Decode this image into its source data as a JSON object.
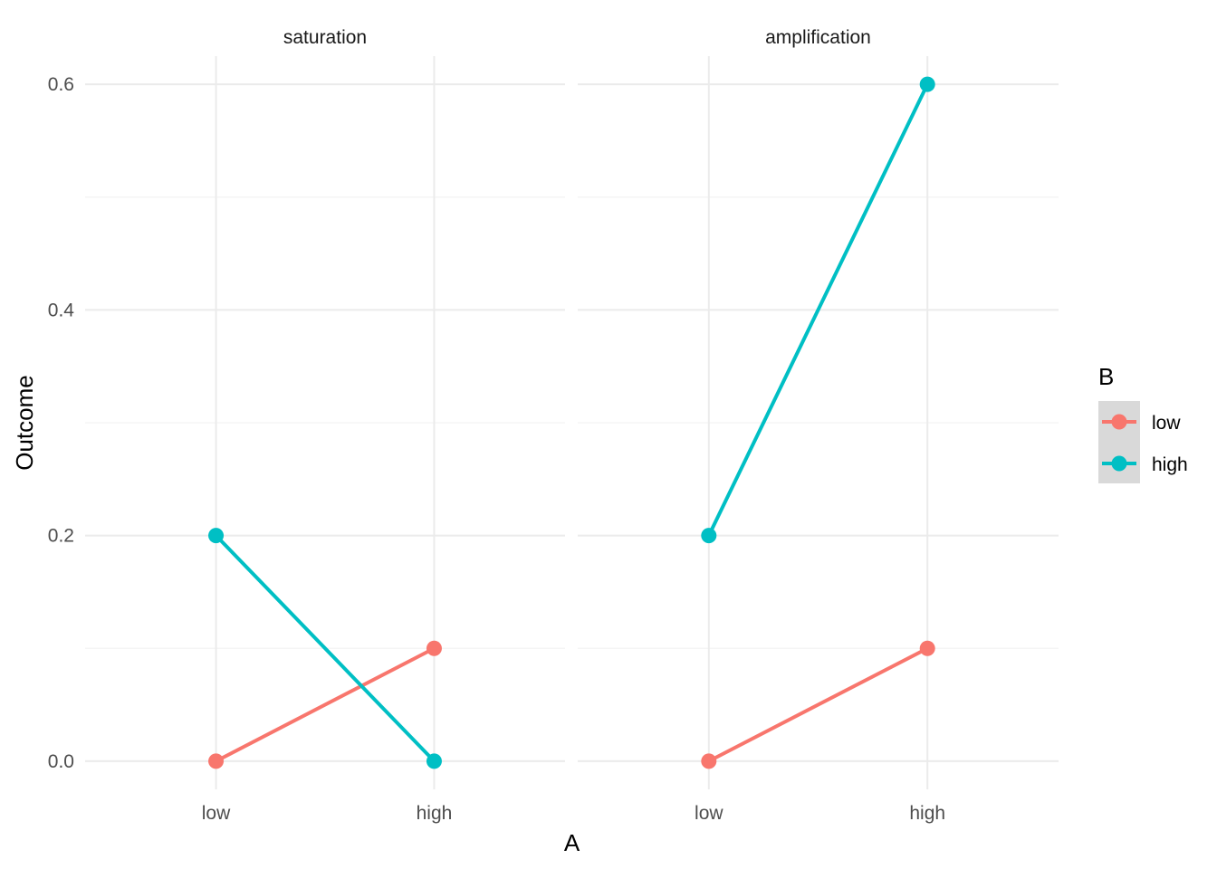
{
  "chart_data": {
    "type": "line",
    "facet_by": "panel",
    "xlabel": "A",
    "ylabel": "Outcome",
    "x_categories": [
      "low",
      "high"
    ],
    "ylim": [
      -0.025,
      0.625
    ],
    "y_ticks": [
      0.0,
      0.2,
      0.4,
      0.6
    ],
    "y_tick_labels": [
      "0.0",
      "0.2",
      "0.4",
      "0.6"
    ],
    "y_minor_ticks": [
      0.1,
      0.3,
      0.5
    ],
    "grid": true,
    "legend": {
      "title": "B",
      "position": "right",
      "entries": [
        {
          "name": "low",
          "color": "#F8766D"
        },
        {
          "name": "high",
          "color": "#00BFC4"
        }
      ]
    },
    "panels": [
      {
        "title": "saturation",
        "series": [
          {
            "name": "low",
            "color": "#F8766D",
            "values": [
              0.0,
              0.1
            ]
          },
          {
            "name": "high",
            "color": "#00BFC4",
            "values": [
              0.2,
              0.0
            ]
          }
        ]
      },
      {
        "title": "amplification",
        "series": [
          {
            "name": "low",
            "color": "#F8766D",
            "values": [
              0.0,
              0.1
            ]
          },
          {
            "name": "high",
            "color": "#00BFC4",
            "values": [
              0.2,
              0.6
            ]
          }
        ]
      }
    ]
  }
}
